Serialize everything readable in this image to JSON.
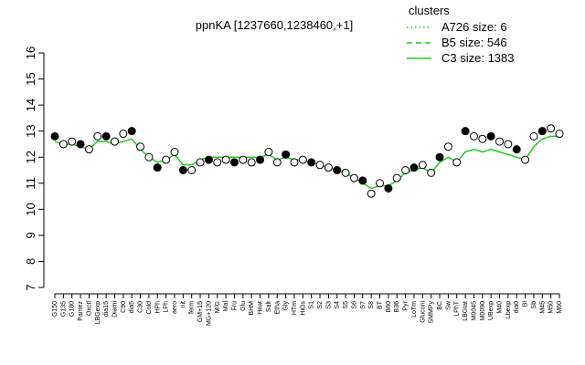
{
  "chart_data": {
    "type": "line",
    "title": "ppnKA [1237660,1238460,+1]",
    "categories": [
      "G150",
      "G135",
      "G180",
      "Pantez",
      "Oxctl",
      "LBGexp",
      "dia15",
      "Diami",
      "C90",
      "dia5",
      "C30",
      "Cold",
      "HPh",
      "LPh",
      "aero",
      "nit",
      "ferm",
      "GM+15",
      "MG+120",
      "M/G",
      "Mal",
      "Fru",
      "Glu",
      "BHM",
      "Heat",
      "Salt",
      "Etha",
      "Gly",
      "HTm",
      "HiOs",
      "S1",
      "S2",
      "S3",
      "S4",
      "S5",
      "S6",
      "S7",
      "S8",
      "BT",
      "B60",
      "B36",
      "Pyr",
      "LoTm",
      "Gluconi",
      "SMMPy",
      "BC",
      "Sw",
      "LPhT",
      "LBGtat",
      "M0045",
      "M0090",
      "UBexp",
      "M40",
      "Lbexp",
      "dia0",
      "Bl",
      "Sb",
      "M45",
      "M50",
      "M60"
    ],
    "series": [
      {
        "name": "C3 size: 1383",
        "color": "#22cc22",
        "style": "solid",
        "values": [
          12.6,
          12.5,
          12.5,
          12.4,
          12.3,
          12.6,
          12.6,
          12.5,
          12.6,
          12.7,
          12.3,
          12.0,
          11.8,
          11.9,
          12.1,
          11.7,
          11.7,
          11.9,
          12.0,
          12.0,
          12.0,
          12.0,
          12.0,
          12.0,
          12.0,
          12.1,
          11.9,
          12.0,
          11.9,
          11.9,
          11.8,
          11.7,
          11.6,
          11.5,
          11.4,
          11.2,
          11.0,
          10.8,
          10.9,
          10.9,
          11.1,
          11.4,
          11.5,
          11.6,
          11.4,
          11.8,
          12.0,
          11.8,
          12.2,
          12.3,
          12.2,
          12.3,
          12.2,
          12.1,
          12.0,
          11.9,
          12.4,
          12.7,
          12.8,
          12.8
        ]
      },
      {
        "name": "points",
        "color": "#000000",
        "values": [
          12.8,
          12.5,
          12.6,
          12.5,
          12.3,
          12.8,
          12.8,
          12.6,
          12.9,
          13.0,
          12.4,
          12.0,
          11.6,
          11.9,
          12.2,
          11.5,
          11.5,
          11.8,
          11.9,
          11.8,
          11.9,
          11.8,
          11.9,
          11.8,
          11.9,
          12.2,
          11.8,
          12.1,
          11.8,
          11.9,
          11.8,
          11.7,
          11.6,
          11.5,
          11.4,
          11.2,
          11.1,
          10.6,
          11.0,
          10.8,
          11.2,
          11.5,
          11.6,
          11.7,
          11.4,
          12.0,
          12.4,
          11.8,
          13.0,
          12.8,
          12.7,
          12.8,
          12.6,
          12.5,
          12.3,
          11.9,
          12.8,
          13.0,
          13.1,
          12.9
        ]
      }
    ],
    "legend": {
      "title": "clusters",
      "color": "#22cc22",
      "entries": [
        {
          "name": "A726 size: 6",
          "style": "dotted"
        },
        {
          "name": "B5 size: 546",
          "style": "dashed"
        },
        {
          "name": "C3 size: 1383",
          "style": "solid"
        }
      ]
    },
    "ylim": [
      7,
      16
    ],
    "yticks": [
      7,
      8,
      9,
      10,
      11,
      12,
      13,
      14,
      15,
      16
    ]
  }
}
